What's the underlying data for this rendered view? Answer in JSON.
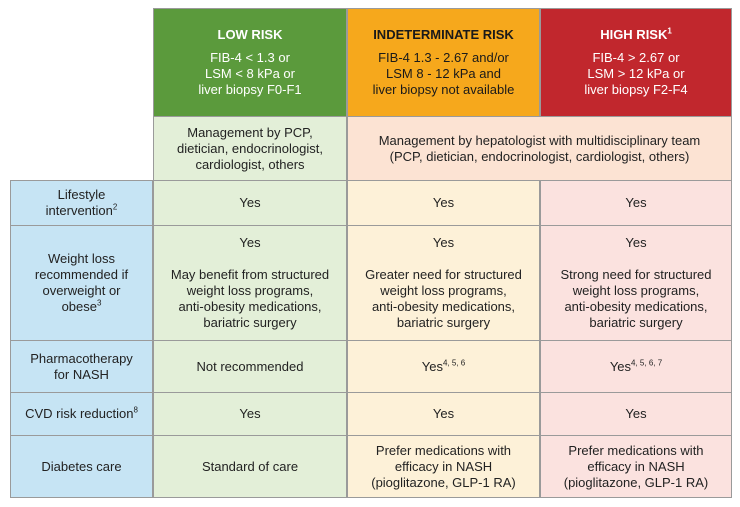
{
  "header": {
    "columns": [
      {
        "title": "LOW RISK",
        "criteria": [
          "FIB-4 < 1.3 or",
          "LSM < 8 kPa or",
          "liver biopsy F0-F1"
        ]
      },
      {
        "title": "INDETERMINATE RISK",
        "criteria": [
          "FIB-4 1.3 - 2.67 and/or",
          "LSM 8 - 12 kPa and",
          "liver biopsy not available"
        ]
      },
      {
        "title": "HIGH RISK",
        "title_sup": "1",
        "criteria": [
          "FIB-4 > 2.67 or",
          "LSM > 12 kPa or",
          "liver biopsy F2-F4"
        ]
      }
    ]
  },
  "management": {
    "low": [
      "Management by PCP,",
      "dietician, endocrinologist,",
      "cardiologist, others"
    ],
    "other": [
      "Management by hepatologist with multidisciplinary team",
      "(PCP, dietician, endocrinologist, cardiologist, others)"
    ]
  },
  "rows": [
    {
      "label": [
        "Lifestyle",
        "intervention"
      ],
      "label_sup": "2",
      "cells": [
        {
          "blocks": [
            [
              "Yes"
            ]
          ]
        },
        {
          "blocks": [
            [
              "Yes"
            ]
          ]
        },
        {
          "blocks": [
            [
              "Yes"
            ]
          ]
        }
      ]
    },
    {
      "label": [
        "Weight loss",
        "recommended if",
        "overweight or",
        "obese"
      ],
      "label_sup": "3",
      "cells": [
        {
          "blocks": [
            [
              "Yes"
            ],
            [
              "May benefit from structured",
              "weight loss programs,",
              "anti-obesity medications,",
              "bariatric surgery"
            ]
          ]
        },
        {
          "blocks": [
            [
              "Yes"
            ],
            [
              "Greater need for structured",
              "weight loss programs,",
              "anti-obesity medications,",
              "bariatric surgery"
            ]
          ]
        },
        {
          "blocks": [
            [
              "Yes"
            ],
            [
              "Strong need for structured",
              "weight loss programs,",
              "anti-obesity medications,",
              "bariatric surgery"
            ]
          ]
        }
      ]
    },
    {
      "label": [
        "Pharmacotherapy",
        "for NASH"
      ],
      "cells": [
        {
          "blocks": [
            [
              "Not recommended"
            ]
          ]
        },
        {
          "blocks": [
            [
              "Yes"
            ]
          ],
          "sup": "4, 5, 6"
        },
        {
          "blocks": [
            [
              "Yes"
            ]
          ],
          "sup": "4, 5, 6, 7"
        }
      ]
    },
    {
      "label": [
        "CVD risk reduction"
      ],
      "label_sup": "8",
      "cells": [
        {
          "blocks": [
            [
              "Yes"
            ]
          ]
        },
        {
          "blocks": [
            [
              "Yes"
            ]
          ]
        },
        {
          "blocks": [
            [
              "Yes"
            ]
          ]
        }
      ]
    },
    {
      "label": [
        "Diabetes care"
      ],
      "cells": [
        {
          "blocks": [
            [
              "Standard of care"
            ]
          ]
        },
        {
          "blocks": [
            [
              "Prefer medications with",
              "efficacy in NASH",
              "(pioglitazone, GLP-1 RA)"
            ]
          ]
        },
        {
          "blocks": [
            [
              "Prefer medications with",
              "efficacy in NASH",
              "(pioglitazone, GLP-1 RA)"
            ]
          ]
        }
      ]
    }
  ]
}
